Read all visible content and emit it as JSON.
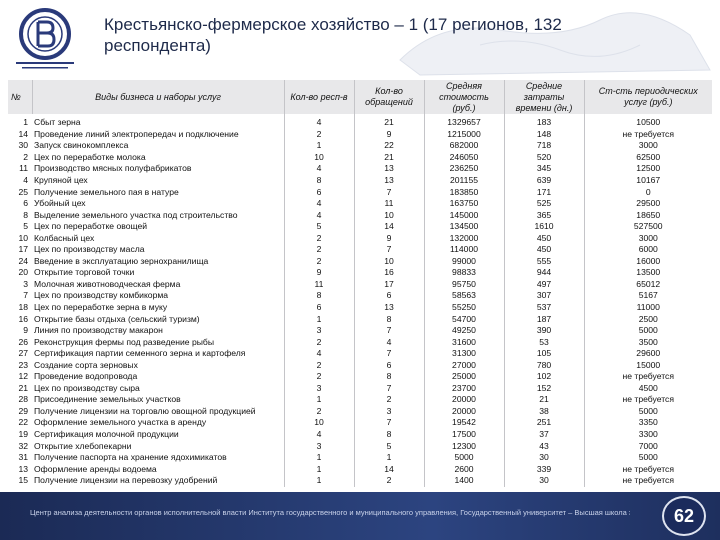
{
  "header": {
    "title": "Крестьянско-фермерское хозяйство – 1 (17 регионов, 132 респондента)"
  },
  "table": {
    "columns": [
      "№",
      "Виды бизнеса и наборы услуг",
      "Кол-во респ-в",
      "Кол-во обращений",
      "Средняя стоимость (руб.)",
      "Средние затраты времени (дн.)",
      "Ст-сть периодических услуг (руб.)"
    ],
    "rows": [
      [
        1,
        "Сбыт зерна",
        4,
        21,
        1329657,
        183,
        10500
      ],
      [
        14,
        "Проведение линий электропередач и подключение",
        2,
        9,
        1215000,
        148,
        "не требуется"
      ],
      [
        30,
        "Запуск свинокомплекса",
        1,
        22,
        682000,
        718,
        3000
      ],
      [
        2,
        "Цех по переработке молока",
        10,
        21,
        246050,
        520,
        62500
      ],
      [
        11,
        "Производство мясных полуфабрикатов",
        4,
        13,
        236250,
        345,
        12500
      ],
      [
        4,
        "Крупяной цех",
        8,
        13,
        201155,
        639,
        10167
      ],
      [
        25,
        "Получение земельного пая в натуре",
        6,
        7,
        183850,
        171,
        0
      ],
      [
        6,
        "Убойный цех",
        4,
        11,
        163750,
        525,
        29500
      ],
      [
        8,
        "Выделение земельного участка под строительство",
        4,
        10,
        145000,
        365,
        18650
      ],
      [
        5,
        "Цех по переработке овощей",
        5,
        14,
        134500,
        1610,
        527500
      ],
      [
        10,
        "Колбасный цех",
        2,
        9,
        132000,
        450,
        3000
      ],
      [
        17,
        "Цех по производству масла",
        2,
        7,
        114000,
        450,
        6000
      ],
      [
        24,
        "Введение в эксплуатацию зернохранилища",
        2,
        10,
        99000,
        555,
        16000
      ],
      [
        20,
        "Открытие торговой точки",
        9,
        16,
        98833,
        944,
        13500
      ],
      [
        3,
        "Молочная животноводческая ферма",
        11,
        17,
        95750,
        497,
        65012
      ],
      [
        7,
        "Цех по производству комбикорма",
        8,
        6,
        58563,
        307,
        5167
      ],
      [
        18,
        "Цех по переработке зерна в муку",
        6,
        13,
        55250,
        537,
        11000
      ],
      [
        16,
        "Открытие базы отдыха (сельский туризм)",
        1,
        8,
        54700,
        187,
        2500
      ],
      [
        9,
        "Линия по производству макарон",
        3,
        7,
        49250,
        390,
        5000
      ],
      [
        26,
        "Реконструкция фермы под разведение рыбы",
        2,
        4,
        31600,
        53,
        3500
      ],
      [
        27,
        "Сертификация партии семенного зерна и картофеля",
        4,
        7,
        31300,
        105,
        29600
      ],
      [
        23,
        "Создание сорта зерновых",
        2,
        6,
        27000,
        780,
        15000
      ],
      [
        12,
        "Проведение водопровода",
        2,
        8,
        25000,
        102,
        "не требуется"
      ],
      [
        21,
        "Цех по производству сыра",
        3,
        7,
        23700,
        152,
        4500
      ],
      [
        28,
        "Присоединение земельных участков",
        1,
        2,
        20000,
        21,
        "не требуется"
      ],
      [
        29,
        "Получение лицензии на торговлю овощной продукцией",
        2,
        3,
        20000,
        38,
        5000
      ],
      [
        22,
        "Оформление земельного участка в аренду",
        10,
        7,
        19542,
        251,
        3350
      ],
      [
        19,
        "Сертификация молочной продукции",
        4,
        8,
        17500,
        37,
        3300
      ],
      [
        32,
        "Открытие хлебопекарни",
        3,
        5,
        12300,
        43,
        7000
      ],
      [
        31,
        "Получение паспорта на хранение ядохимикатов",
        1,
        1,
        5000,
        30,
        5000
      ],
      [
        13,
        "Оформление аренды водоема",
        1,
        14,
        2600,
        339,
        "не требуется"
      ],
      [
        15,
        "Получение лицензии на перевозку удобрений",
        1,
        2,
        1400,
        30,
        "не требуется"
      ]
    ]
  },
  "footer": {
    "text": "Центр анализа деятельности органов исполнительной власти Института государственного и муниципального управления, Государственный университет – Высшая школа экономики",
    "page": 62
  }
}
